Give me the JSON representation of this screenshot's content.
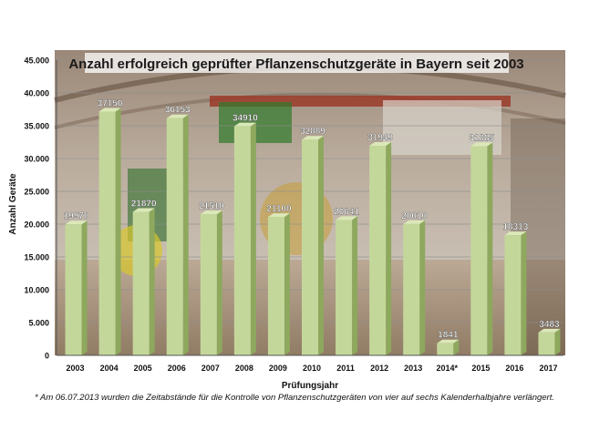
{
  "chart_data": {
    "type": "bar",
    "title": "Anzahl erfolgreich geprüfter Pflanzenschutzgeräte in Bayern seit 2003",
    "xlabel": "Prüfungsjahr",
    "ylabel": "Anzahl Geräte",
    "ylim": [
      0,
      45000
    ],
    "yticks": [
      "0",
      "5.000",
      "10.000",
      "15.000",
      "20.000",
      "25.000",
      "30.000",
      "35.000",
      "40.000",
      "45.000"
    ],
    "categories": [
      "2003",
      "2004",
      "2005",
      "2006",
      "2007",
      "2008",
      "2009",
      "2010",
      "2011",
      "2012",
      "2013",
      "2014*",
      "2015",
      "2016",
      "2017"
    ],
    "values": [
      19970,
      37150,
      21870,
      36153,
      21510,
      34910,
      21100,
      32889,
      20641,
      31949,
      20010,
      1841,
      31885,
      18313,
      3483
    ],
    "value_labels": [
      "19970",
      "37150",
      "21870",
      "36153",
      "21510",
      "34910",
      "21100",
      "32889",
      "20641",
      "31949",
      "20010",
      "1841",
      "31885",
      "18313",
      "3483"
    ],
    "grid": true,
    "colors": {
      "bar": "#c4d79b",
      "bar_side": "#8ea85e",
      "bar_top": "#dbe8b8",
      "value_label": "#ffffff"
    }
  },
  "footnote": "* Am 06.07.2013 wurden die Zeitabstände für die Kontrolle von Pflanzenschutzgeräten von vier auf sechs Kalenderhalbjahre verlängert."
}
